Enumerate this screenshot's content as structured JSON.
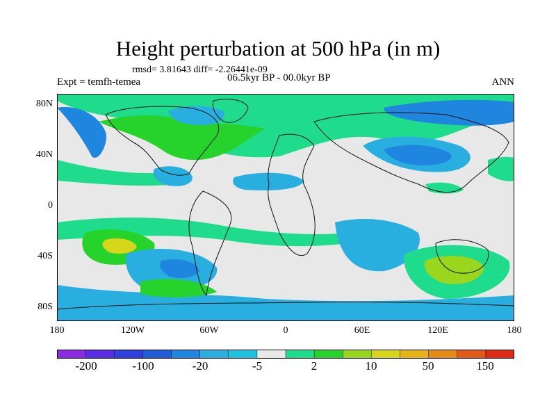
{
  "title": "Height perturbation at 500 hPa (in m)",
  "stats": "rmsd= 3.81643 diff= -2.26441e-09",
  "expt": "Expt = temfh-temea",
  "period": "06.5kyr BP - 00.0kyr BP",
  "season": "ANN",
  "lat_ticks": [
    "80N",
    "40N",
    "0",
    "40S",
    "80S"
  ],
  "lon_ticks": [
    "180",
    "120W",
    "60W",
    "0",
    "60E",
    "120E",
    "180"
  ],
  "colorbar_labels": [
    "-200",
    "-100",
    "-20",
    "-5",
    "2",
    "10",
    "50",
    "150"
  ],
  "colorbar_colors": [
    "#8a2be2",
    "#5a2ee6",
    "#2f3fe0",
    "#1f5ed8",
    "#1f86df",
    "#29aee0",
    "#1fc2dc",
    "#e8e8e8",
    "#1fdc8c",
    "#25d32a",
    "#9ad61e",
    "#d7d61a",
    "#e6b414",
    "#e58a14",
    "#e25a14",
    "#e02a14"
  ],
  "colors": {
    "ocean_bg": "#e8e8e8",
    "coast": "#111111"
  }
}
